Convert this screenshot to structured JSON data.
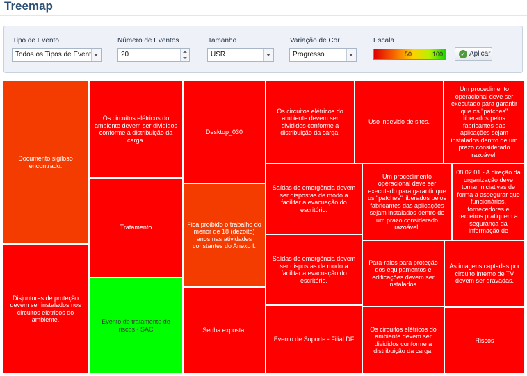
{
  "page": {
    "title": "Treemap"
  },
  "filters": {
    "event_type": {
      "label": "Tipo de Evento",
      "value": "Todos os Tipos de Evento"
    },
    "event_count": {
      "label": "Número de Eventos",
      "value": "20"
    },
    "size": {
      "label": "Tamanho",
      "value": "USR"
    },
    "color_variation": {
      "label": "Variação de Cor",
      "value": "Progresso"
    },
    "scale": {
      "label": "Escala",
      "mid": "50",
      "max": "100"
    },
    "apply_label": "Aplicar"
  },
  "colors": {
    "red": "#fe0000",
    "orange": "#f53c00",
    "green": "#00ff00"
  },
  "treemap": [
    {
      "label": "Documento sigiloso encontrado.",
      "color": "#f53c00"
    },
    {
      "label": "Disjuntores de proteção devem ser instalados nos circuitos elétricos do ambiente.",
      "color": "#fe0000"
    },
    {
      "label": "Os circuitos elétricos do ambiente devem ser divididos conforme a distribuição da carga.",
      "color": "#fe0000"
    },
    {
      "label": "Tratamento",
      "color": "#fe0000"
    },
    {
      "label": "Evento de tratamento de riscos - SAC",
      "color": "#00ff00",
      "dark": true
    },
    {
      "label": "Desktop_030",
      "color": "#fe0000"
    },
    {
      "label": "Fica proibido o trabalho do menor de 18 (dezoito) anos nas atividades constantes do Anexo I.",
      "color": "#f53c00"
    },
    {
      "label": "Senha exposta.",
      "color": "#fe0000"
    },
    {
      "label": "Os circuitos elétricos do ambiente devem ser divididos conforme a distribuição da carga.",
      "color": "#fe0000"
    },
    {
      "label": "Saídas de emergência devem ser dispostas de modo a facilitar a evacuação do escritório.",
      "color": "#fe0000"
    },
    {
      "label": "Saídas de emergência devem ser dispostas de modo a facilitar a evacuação do escritório.",
      "color": "#fe0000"
    },
    {
      "label": "Evento de Suporte - Filial DF",
      "color": "#fe0000"
    },
    {
      "label": "Uso indevido de sites.",
      "color": "#fe0000"
    },
    {
      "label": "Um procedimento operacional deve ser executado para garantir que os \"patches\" liberados pelos fabricantes das aplicações sejam instalados dentro de um prazo considerado razoável.",
      "color": "#fe0000"
    },
    {
      "label": "Um procedimento operacional deve ser executado para garantir que os \"patches\" liberados pelos fabricantes das aplicações sejam instalados dentro de um prazo considerado razoável.",
      "color": "#fe0000"
    },
    {
      "label": "08.02.01 - A direção da organização deve tomar iniciativas de forma a assegurar que funcionários, fornecedores e terceiros pratiquem a segurança da informação de",
      "color": "#fe0000"
    },
    {
      "label": "Pára-raios para proteção dos equipamentos e edificações devem ser instalados.",
      "color": "#fe0000"
    },
    {
      "label": "As imagens captadas por circuito interno de TV devem ser gravadas.",
      "color": "#fe0000"
    },
    {
      "label": "Os circuitos elétricos do ambiente devem ser divididos conforme a distribuição da carga.",
      "color": "#fe0000"
    },
    {
      "label": "Riscos",
      "color": "#fe0000"
    }
  ]
}
